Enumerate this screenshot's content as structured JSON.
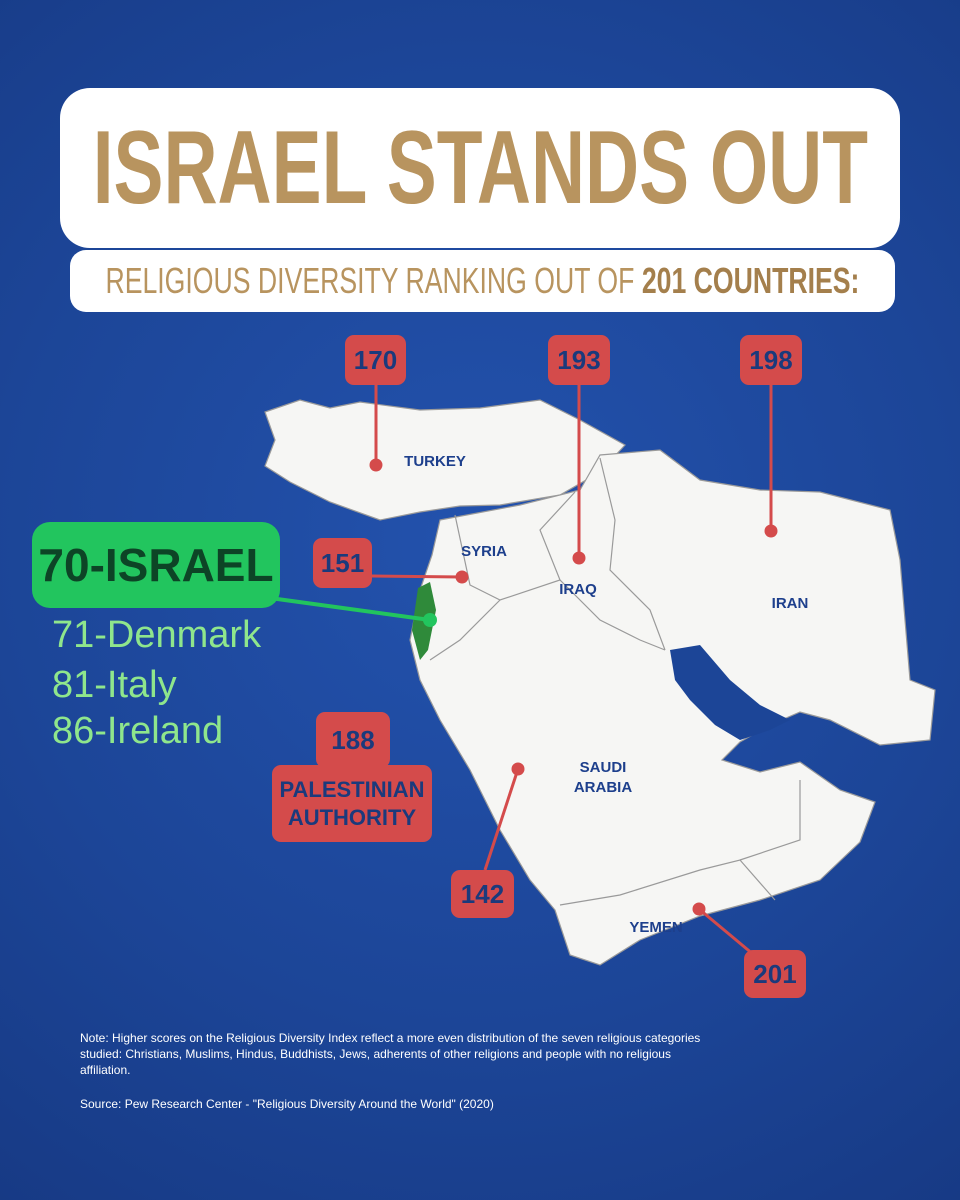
{
  "header": {
    "title": "ISRAEL STANDS OUT",
    "subtitle": "RELIGIOUS DIVERSITY RANKING OUT OF ",
    "subtitle_emphasis": "201 COUNTRIES:"
  },
  "israel": {
    "label": "70-ISRAEL",
    "comparisons": [
      "71-Denmark",
      "81-Italy",
      "86-Ireland"
    ]
  },
  "countries": [
    {
      "name": "TURKEY",
      "rank": 170
    },
    {
      "name": "IRAQ",
      "rank": 193
    },
    {
      "name": "IRAN",
      "rank": 198
    },
    {
      "name": "SYRIA",
      "rank": 151
    },
    {
      "name": "SAUDI ARABIA",
      "rank": 142
    },
    {
      "name": "YEMEN",
      "rank": 201
    },
    {
      "name": "PALESTINIAN AUTHORITY",
      "rank": 188
    }
  ],
  "notes": {
    "note": "Note: Higher scores on the Religious Diversity Index reflect a more even distribution of the seven religious categories studied: Christians, Muslims, Hindus, Buddhists, Jews, adherents of other religions and people with no religious affiliation.",
    "source": "Source: Pew Research Center - \"Religious Diversity Around the World\" (2020)"
  }
}
